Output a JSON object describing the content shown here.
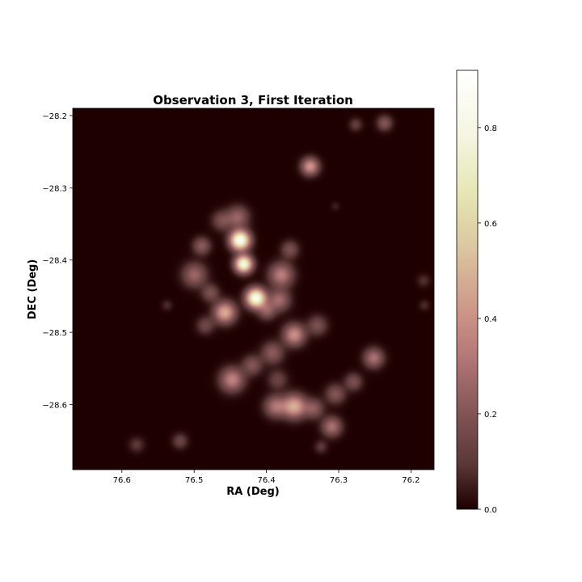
{
  "chart_data": {
    "type": "heatmap",
    "title": "Observation 3, First Iteration",
    "xlabel": "RA (Deg)",
    "ylabel": "DEC (Deg)",
    "x_ticks": [
      "76.6",
      "76.5",
      "76.4",
      "76.3",
      "76.2"
    ],
    "x_tick_values": [
      76.6,
      76.5,
      76.4,
      76.3,
      76.2
    ],
    "y_ticks": [
      "−28.2",
      "−28.3",
      "−28.4",
      "−28.5",
      "−28.6"
    ],
    "y_tick_values": [
      -28.2,
      -28.3,
      -28.4,
      -28.5,
      -28.6
    ],
    "xlim": [
      76.668,
      76.168
    ],
    "ylim": [
      -28.69,
      -28.19
    ],
    "x_inverted": true,
    "colormap": "pink",
    "colorbar": {
      "ticks": [
        "0.0",
        "0.2",
        "0.4",
        "0.6",
        "0.8"
      ],
      "tick_values": [
        0.0,
        0.2,
        0.4,
        0.6,
        0.8
      ],
      "range": [
        0.0,
        0.92
      ]
    },
    "sources": [
      {
        "ra": 76.34,
        "dec": -28.27,
        "value": 0.42,
        "sigma": 0.008
      },
      {
        "ra": 76.277,
        "dec": -28.212,
        "value": 0.12,
        "sigma": 0.006
      },
      {
        "ra": 76.237,
        "dec": -28.21,
        "value": 0.2,
        "sigma": 0.007
      },
      {
        "ra": 76.437,
        "dec": -28.372,
        "value": 0.9,
        "sigma": 0.009
      },
      {
        "ra": 76.432,
        "dec": -28.405,
        "value": 0.82,
        "sigma": 0.008
      },
      {
        "ra": 76.415,
        "dec": -28.452,
        "value": 0.86,
        "sigma": 0.009
      },
      {
        "ra": 76.44,
        "dec": -28.34,
        "value": 0.25,
        "sigma": 0.01
      },
      {
        "ra": 76.462,
        "dec": -28.345,
        "value": 0.18,
        "sigma": 0.009
      },
      {
        "ra": 76.49,
        "dec": -28.38,
        "value": 0.22,
        "sigma": 0.008
      },
      {
        "ra": 76.5,
        "dec": -28.42,
        "value": 0.26,
        "sigma": 0.011
      },
      {
        "ra": 76.478,
        "dec": -28.445,
        "value": 0.18,
        "sigma": 0.008
      },
      {
        "ra": 76.458,
        "dec": -28.472,
        "value": 0.48,
        "sigma": 0.01
      },
      {
        "ra": 76.485,
        "dec": -28.49,
        "value": 0.15,
        "sigma": 0.008
      },
      {
        "ra": 76.38,
        "dec": -28.42,
        "value": 0.34,
        "sigma": 0.011
      },
      {
        "ra": 76.383,
        "dec": -28.455,
        "value": 0.28,
        "sigma": 0.01
      },
      {
        "ra": 76.4,
        "dec": -28.47,
        "value": 0.22,
        "sigma": 0.008
      },
      {
        "ra": 76.368,
        "dec": -28.385,
        "value": 0.18,
        "sigma": 0.008
      },
      {
        "ra": 76.362,
        "dec": -28.503,
        "value": 0.4,
        "sigma": 0.01
      },
      {
        "ra": 76.33,
        "dec": -28.49,
        "value": 0.18,
        "sigma": 0.009
      },
      {
        "ra": 76.392,
        "dec": -28.528,
        "value": 0.22,
        "sigma": 0.01
      },
      {
        "ra": 76.42,
        "dec": -28.545,
        "value": 0.2,
        "sigma": 0.009
      },
      {
        "ra": 76.448,
        "dec": -28.565,
        "value": 0.36,
        "sigma": 0.011
      },
      {
        "ra": 76.385,
        "dec": -28.565,
        "value": 0.14,
        "sigma": 0.009
      },
      {
        "ra": 76.252,
        "dec": -28.535,
        "value": 0.3,
        "sigma": 0.009
      },
      {
        "ra": 76.28,
        "dec": -28.568,
        "value": 0.18,
        "sigma": 0.008
      },
      {
        "ra": 76.305,
        "dec": -28.585,
        "value": 0.2,
        "sigma": 0.009
      },
      {
        "ra": 76.362,
        "dec": -28.602,
        "value": 0.48,
        "sigma": 0.011
      },
      {
        "ra": 76.388,
        "dec": -28.602,
        "value": 0.3,
        "sigma": 0.01
      },
      {
        "ra": 76.335,
        "dec": -28.605,
        "value": 0.22,
        "sigma": 0.009
      },
      {
        "ra": 76.31,
        "dec": -28.63,
        "value": 0.3,
        "sigma": 0.009
      },
      {
        "ra": 76.325,
        "dec": -28.658,
        "value": 0.1,
        "sigma": 0.006
      },
      {
        "ra": 76.52,
        "dec": -28.65,
        "value": 0.14,
        "sigma": 0.007
      },
      {
        "ra": 76.58,
        "dec": -28.655,
        "value": 0.1,
        "sigma": 0.007
      },
      {
        "ra": 76.183,
        "dec": -28.428,
        "value": 0.08,
        "sigma": 0.006
      },
      {
        "ra": 76.182,
        "dec": -28.462,
        "value": 0.07,
        "sigma": 0.005
      },
      {
        "ra": 76.538,
        "dec": -28.462,
        "value": 0.07,
        "sigma": 0.005
      },
      {
        "ra": 76.305,
        "dec": -28.325,
        "value": 0.05,
        "sigma": 0.004
      }
    ]
  }
}
